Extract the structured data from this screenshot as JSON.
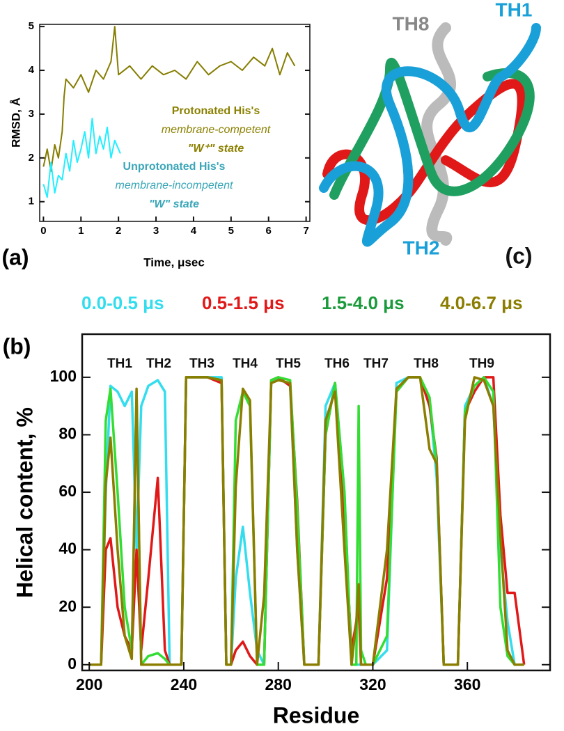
{
  "chart_data": [
    {
      "type": "line",
      "panel_label": "(a)",
      "x_label": "Time,  μsec",
      "y_label": "RMSD, Å",
      "xlim": [
        -0.1,
        7.1
      ],
      "ylim": [
        0.55,
        5.05
      ],
      "xticks": [
        0,
        1,
        2,
        3,
        4,
        5,
        6,
        7
      ],
      "yticks": [
        1,
        2,
        3,
        4,
        5
      ],
      "series": [
        {
          "name": "Protonated His's",
          "note_lines": [
            "membrane-competent",
            "\"W⁺\" state"
          ],
          "color": "#857d00",
          "label_color": "#8b8000",
          "x": [
            0,
            0.1,
            0.2,
            0.3,
            0.4,
            0.5,
            0.55,
            0.6,
            0.8,
            1.0,
            1.2,
            1.4,
            1.6,
            1.8,
            1.9,
            2.0,
            2.3,
            2.6,
            2.9,
            3.2,
            3.5,
            3.8,
            4.1,
            4.4,
            4.7,
            5.0,
            5.3,
            5.6,
            5.9,
            6.1,
            6.3,
            6.5,
            6.7
          ],
          "values": [
            1.8,
            2.2,
            1.7,
            2.3,
            2.0,
            2.6,
            3.4,
            3.8,
            3.6,
            3.9,
            3.5,
            4.0,
            3.8,
            4.2,
            5.0,
            3.9,
            4.1,
            3.8,
            4.1,
            3.9,
            4.0,
            3.8,
            4.2,
            3.9,
            4.1,
            4.2,
            4.0,
            4.3,
            4.1,
            4.5,
            3.9,
            4.4,
            4.1
          ]
        },
        {
          "name": "Unprotonated His's",
          "note_lines": [
            "membrane-incompetent",
            "\"W\" state"
          ],
          "color": "#22eeff",
          "label_color": "#3aa6b8",
          "x": [
            0,
            0.1,
            0.2,
            0.3,
            0.4,
            0.5,
            0.6,
            0.7,
            0.8,
            0.9,
            1.0,
            1.1,
            1.2,
            1.3,
            1.4,
            1.5,
            1.6,
            1.7,
            1.8,
            1.9,
            2.0,
            2.05
          ],
          "values": [
            1.4,
            1.1,
            1.9,
            1.2,
            1.6,
            1.5,
            2.1,
            1.7,
            2.4,
            1.9,
            2.2,
            2.6,
            2.0,
            2.9,
            2.1,
            2.5,
            2.2,
            2.7,
            2.0,
            2.4,
            2.2,
            2.1
          ]
        }
      ]
    },
    {
      "type": "line",
      "panel_label": "(b)",
      "x_label": "Residue",
      "y_label": "Helical content, %",
      "xlim": [
        197,
        395
      ],
      "ylim": [
        -2,
        115
      ],
      "xticks": [
        200,
        240,
        280,
        320,
        360
      ],
      "yticks": [
        0,
        20,
        40,
        60,
        80,
        100
      ],
      "helix_labels": [
        "TH1",
        "TH2",
        "TH3",
        "TH4",
        "TH5",
        "TH6",
        "TH7",
        "TH8",
        "TH9"
      ],
      "x": [
        200,
        205,
        207,
        209,
        212,
        215,
        218,
        220,
        222,
        225,
        229,
        232,
        234,
        239,
        241,
        250,
        256,
        258,
        260,
        262,
        265,
        268,
        271,
        274,
        277,
        280,
        285,
        288,
        291,
        297,
        300,
        304,
        308,
        311,
        313,
        314,
        315,
        317,
        320,
        326,
        330,
        335,
        340,
        344,
        347,
        350,
        356,
        359,
        363,
        367,
        371,
        374,
        377,
        380,
        384
      ],
      "series": [
        {
          "name": "0.0-0.5  μs",
          "color": "#33ddee",
          "values": [
            0,
            0,
            60,
            97,
            95,
            90,
            95,
            40,
            90,
            97,
            99,
            95,
            0,
            0,
            100,
            100,
            100,
            0,
            0,
            30,
            48,
            25,
            5,
            0,
            98,
            100,
            97,
            40,
            0,
            0,
            90,
            98,
            60,
            0,
            0,
            0,
            0,
            0,
            0,
            5,
            98,
            100,
            100,
            92,
            65,
            0,
            0,
            90,
            97,
            100,
            90,
            40,
            15,
            0,
            0
          ]
        },
        {
          "name": "0.5-1.5  μs",
          "color": "#e01818",
          "values": [
            0,
            0,
            40,
            44,
            20,
            10,
            5,
            40,
            5,
            30,
            65,
            5,
            0,
            0,
            100,
            100,
            98,
            0,
            0,
            5,
            8,
            3,
            0,
            0,
            99,
            100,
            97,
            57,
            0,
            0,
            80,
            98,
            50,
            5,
            15,
            20,
            0,
            0,
            0,
            30,
            95,
            100,
            100,
            90,
            72,
            0,
            0,
            88,
            95,
            100,
            100,
            52,
            25,
            25,
            0
          ]
        },
        {
          "name": "1.5-4.0  μs",
          "color": "#33dd33",
          "label_color": "#1a9a3a",
          "values": [
            0,
            0,
            85,
            96,
            60,
            20,
            5,
            95,
            0,
            3,
            4,
            2,
            0,
            0,
            100,
            100,
            99,
            0,
            0,
            85,
            95,
            90,
            0,
            0,
            99,
            100,
            99,
            55,
            0,
            0,
            80,
            98,
            60,
            0,
            0,
            90,
            5,
            0,
            0,
            10,
            95,
            100,
            100,
            93,
            70,
            0,
            0,
            88,
            97,
            100,
            95,
            20,
            3,
            0,
            0
          ]
        },
        {
          "name": "4.0-6.7  μs",
          "color": "#8b7d00",
          "values": [
            0,
            0,
            63,
            79,
            40,
            10,
            2,
            96,
            0,
            0,
            0,
            0,
            0,
            0,
            100,
            100,
            99,
            0,
            0,
            62,
            96,
            92,
            0,
            24,
            98,
            99,
            98,
            40,
            0,
            0,
            85,
            95,
            40,
            0,
            15,
            28,
            0,
            0,
            0,
            40,
            96,
            100,
            100,
            75,
            70,
            0,
            0,
            85,
            100,
            99,
            90,
            45,
            5,
            0,
            0
          ]
        }
      ]
    }
  ],
  "panel_c": {
    "panel_label": "(c)",
    "helix_labels": [
      "TH8",
      "TH1",
      "TH2"
    ]
  }
}
